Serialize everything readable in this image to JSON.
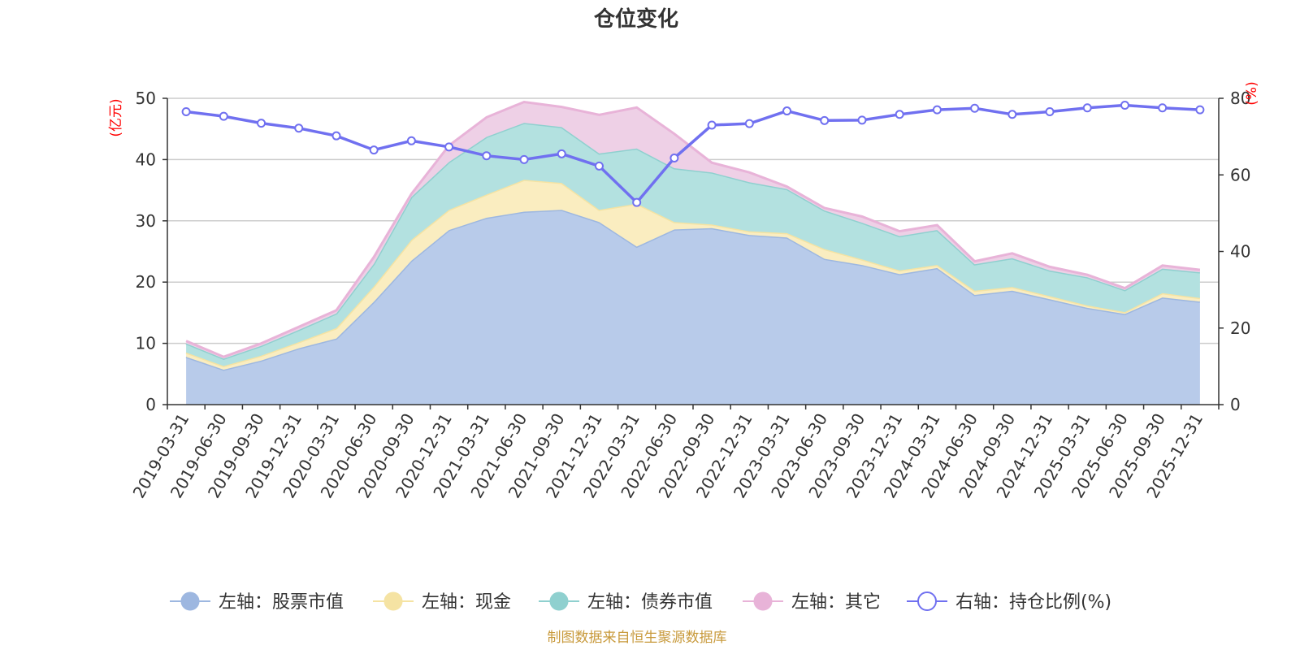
{
  "chart_data": {
    "type": "area",
    "title": "仓位变化",
    "source_note": "制图数据来自恒生聚源数据库",
    "left_axis": {
      "name": "(亿元)",
      "min": 0,
      "max": 50,
      "ticks": [
        "0",
        "10",
        "20",
        "30",
        "40",
        "50"
      ]
    },
    "right_axis": {
      "name": "(%)",
      "min": 0,
      "max": 80,
      "ticks": [
        "0",
        "20",
        "40",
        "60",
        "80"
      ]
    },
    "categories": [
      "2019-03-31",
      "2019-06-30",
      "2019-09-30",
      "2019-12-31",
      "2020-03-31",
      "2020-06-30",
      "2020-09-30",
      "2020-12-31",
      "2021-03-31",
      "2021-06-30",
      "2021-09-30",
      "2021-12-31",
      "2022-03-31",
      "2022-06-30",
      "2022-09-30",
      "2022-12-31",
      "2023-03-31",
      "2023-06-30",
      "2023-09-30",
      "2023-12-31",
      "2024-03-31",
      "2024-06-30",
      "2024-09-30",
      "2024-12-31",
      "2025-03-31",
      "2025-06-30",
      "2025-09-30",
      "2025-12-31"
    ],
    "series": [
      {
        "name": "左轴：股票市值",
        "axis": "left",
        "stack": true,
        "color": "#9db7e0",
        "fill": "#b8cbea",
        "values": [
          7.8,
          5.7,
          7.2,
          9.2,
          10.8,
          16.8,
          23.5,
          28.5,
          30.5,
          31.5,
          31.8,
          29.8,
          25.8,
          28.6,
          28.8,
          27.7,
          27.3,
          23.8,
          22.8,
          21.3,
          22.3,
          17.9,
          18.6,
          17.2,
          15.8,
          14.8,
          17.5,
          16.8
        ]
      },
      {
        "name": "左轴：现金",
        "axis": "left",
        "stack": true,
        "color": "#f5e3a3",
        "fill": "#faedc0",
        "values": [
          0.7,
          0.6,
          0.8,
          1.0,
          1.7,
          2.5,
          3.4,
          3.3,
          3.8,
          5.2,
          4.4,
          2.0,
          7.0,
          1.2,
          0.6,
          0.6,
          0.7,
          1.6,
          0.9,
          0.6,
          0.5,
          0.7,
          0.6,
          0.5,
          0.4,
          0.3,
          0.7,
          0.6
        ]
      },
      {
        "name": "左轴：债券市值",
        "axis": "left",
        "stack": true,
        "color": "#8fd0cf",
        "fill": "#b3e1e0",
        "values": [
          1.5,
          1.2,
          1.6,
          2.0,
          2.4,
          3.7,
          7.0,
          7.8,
          9.4,
          9.3,
          9.1,
          9.2,
          9.0,
          8.8,
          8.5,
          8.0,
          7.2,
          6.3,
          6.0,
          5.6,
          5.7,
          4.3,
          4.7,
          4.2,
          4.6,
          3.6,
          4.0,
          4.2
        ]
      },
      {
        "name": "左轴：其它",
        "axis": "left",
        "stack": true,
        "color": "#e8b3d8",
        "fill": "#eed0e6",
        "values": [
          0.4,
          0.3,
          0.4,
          0.5,
          0.5,
          1.1,
          0.5,
          2.7,
          3.2,
          3.4,
          3.3,
          6.3,
          6.7,
          5.6,
          1.6,
          1.6,
          0.4,
          0.4,
          1.0,
          0.8,
          0.8,
          0.5,
          0.8,
          0.6,
          0.4,
          0.3,
          0.5,
          0.4
        ]
      },
      {
        "name": "右轴：持仓比例(%)",
        "axis": "right",
        "stack": false,
        "color": "#7070f0",
        "values": [
          76.5,
          75.3,
          73.5,
          72.2,
          70.2,
          66.5,
          68.9,
          67.3,
          65.0,
          64.0,
          65.5,
          62.3,
          52.8,
          64.4,
          73.0,
          73.4,
          76.7,
          74.2,
          74.3,
          75.8,
          77.0,
          77.4,
          75.8,
          76.5,
          77.5,
          78.2,
          77.5,
          77.0
        ]
      }
    ]
  }
}
